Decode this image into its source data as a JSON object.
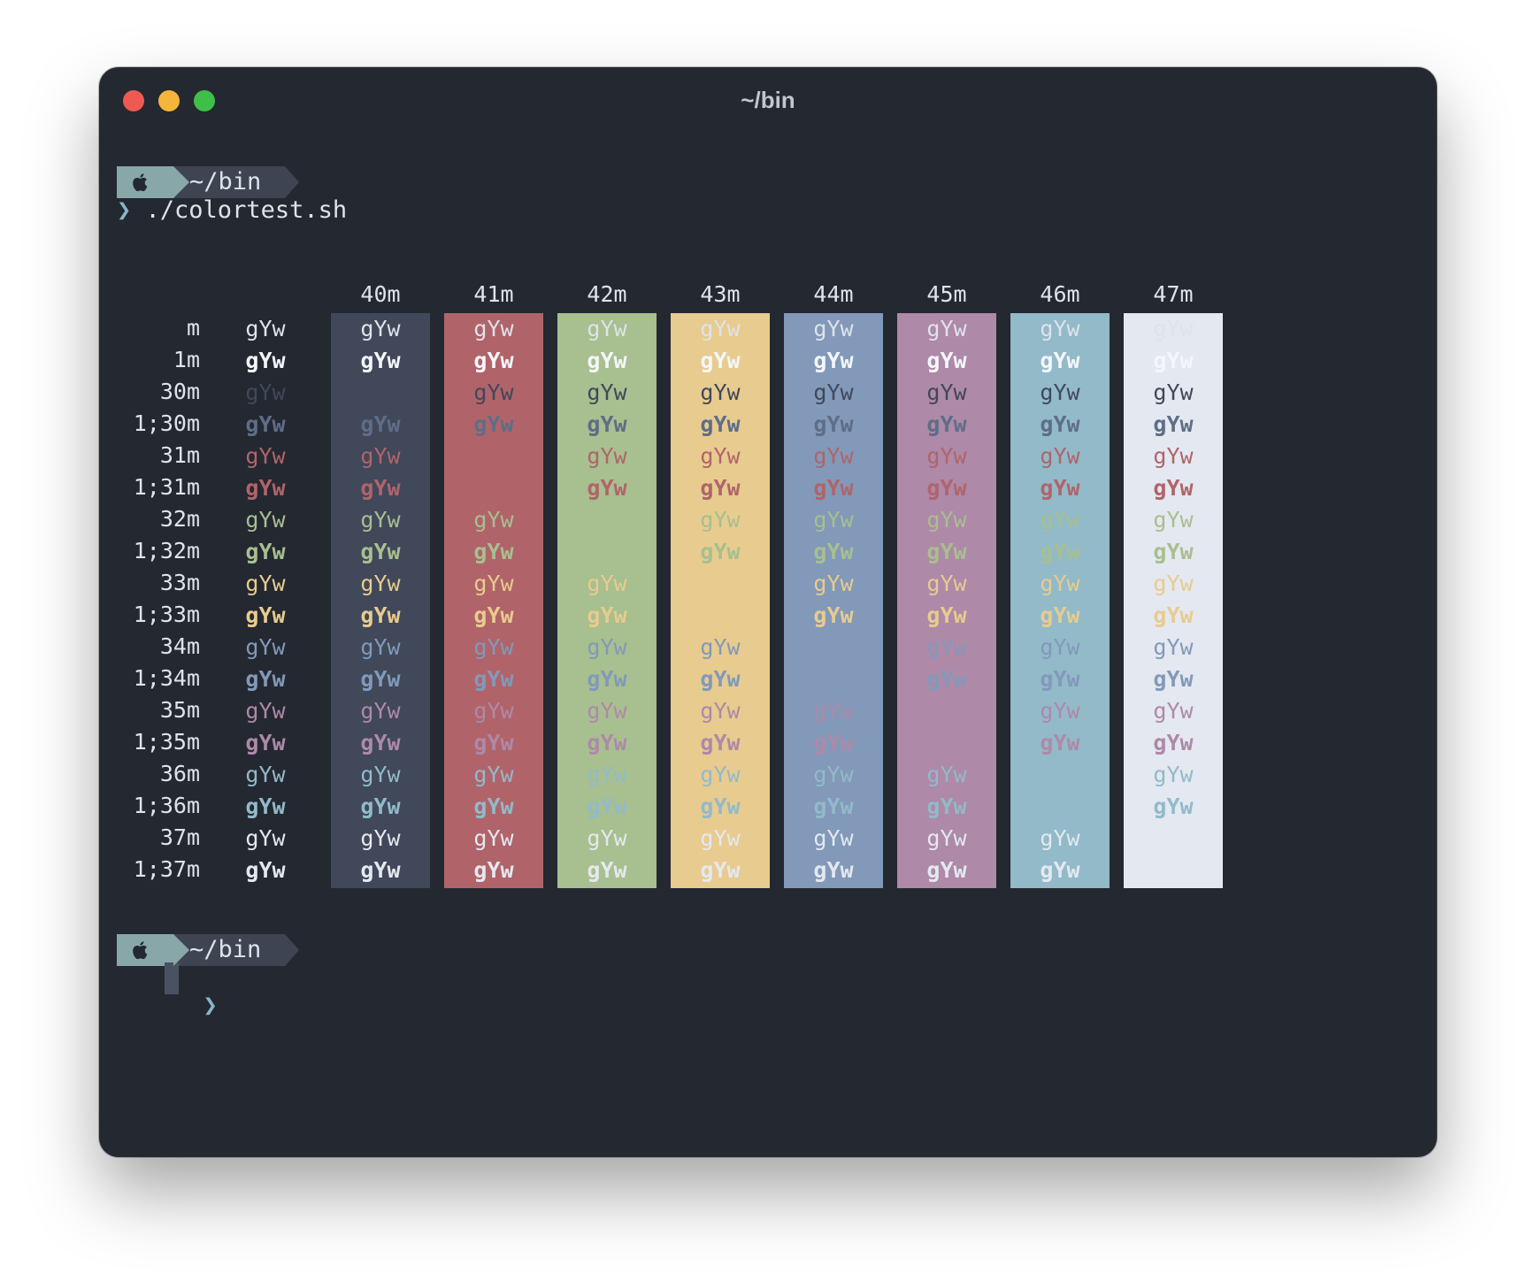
{
  "window": {
    "title": "~/bin"
  },
  "prompt": {
    "dir": "~/bin",
    "chevron": "❯",
    "command": "./colortest.sh"
  },
  "sample": "gYw",
  "colors": {
    "default_fg": "#dfe3ea",
    "bold_fg": "#f4f6fa",
    "black": "#40485a",
    "red": "#b0646a",
    "green": "#a8bf8f",
    "yellow": "#e8cb8f",
    "blue": "#8299b9",
    "magenta": "#ae89a8",
    "cyan": "#92bac9",
    "white": "#e4e8f0",
    "bright_black": "#5f6d87",
    "bright_red": "#b0646a"
  },
  "columns": [
    {
      "label": "",
      "bg": ""
    },
    {
      "label": "40m",
      "bg": "black"
    },
    {
      "label": "41m",
      "bg": "red"
    },
    {
      "label": "42m",
      "bg": "green"
    },
    {
      "label": "43m",
      "bg": "yellow"
    },
    {
      "label": "44m",
      "bg": "blue"
    },
    {
      "label": "45m",
      "bg": "magenta"
    },
    {
      "label": "46m",
      "bg": "cyan"
    },
    {
      "label": "47m",
      "bg": "white"
    }
  ],
  "rows": [
    {
      "label": "m",
      "fg": "default",
      "bold": false
    },
    {
      "label": "1m",
      "fg": "default",
      "bold": true
    },
    {
      "label": "30m",
      "fg": "black",
      "bold": false
    },
    {
      "label": "1;30m",
      "fg": "black",
      "bold": true
    },
    {
      "label": "31m",
      "fg": "red",
      "bold": false
    },
    {
      "label": "1;31m",
      "fg": "red",
      "bold": true
    },
    {
      "label": "32m",
      "fg": "green",
      "bold": false
    },
    {
      "label": "1;32m",
      "fg": "green",
      "bold": true
    },
    {
      "label": "33m",
      "fg": "yellow",
      "bold": false
    },
    {
      "label": "1;33m",
      "fg": "yellow",
      "bold": true
    },
    {
      "label": "34m",
      "fg": "blue",
      "bold": false
    },
    {
      "label": "1;34m",
      "fg": "blue",
      "bold": true
    },
    {
      "label": "35m",
      "fg": "magenta",
      "bold": false
    },
    {
      "label": "1;35m",
      "fg": "magenta",
      "bold": true
    },
    {
      "label": "36m",
      "fg": "cyan",
      "bold": false
    },
    {
      "label": "1;36m",
      "fg": "cyan",
      "bold": true
    },
    {
      "label": "37m",
      "fg": "white",
      "bold": false
    },
    {
      "label": "1;37m",
      "fg": "white",
      "bold": true
    }
  ]
}
